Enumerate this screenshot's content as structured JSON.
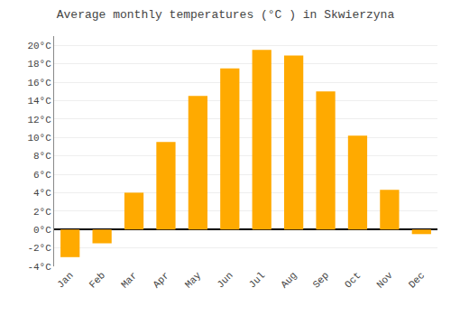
{
  "chart_data": {
    "type": "bar",
    "title": "Average monthly temperatures (°C ) in Skwierzyna",
    "categories": [
      "Jan",
      "Feb",
      "Mar",
      "Apr",
      "May",
      "Jun",
      "Jul",
      "Aug",
      "Sep",
      "Oct",
      "Nov",
      "Dec"
    ],
    "values": [
      -3.0,
      -1.5,
      4.0,
      9.5,
      14.5,
      17.5,
      19.5,
      18.9,
      15.0,
      10.2,
      4.3,
      -0.5
    ],
    "color": "#FFAA00",
    "ylim": [
      -4,
      21
    ],
    "yticks": [
      {
        "value": -4,
        "label": "-4°C"
      },
      {
        "value": -2,
        "label": "-2°C"
      },
      {
        "value": 0,
        "label": "0°C"
      },
      {
        "value": 2,
        "label": "2°C"
      },
      {
        "value": 4,
        "label": "4°C"
      },
      {
        "value": 6,
        "label": "6°C"
      },
      {
        "value": 8,
        "label": "8°C"
      },
      {
        "value": 10,
        "label": "10°C"
      },
      {
        "value": 12,
        "label": "12°C"
      },
      {
        "value": 14,
        "label": "14°C"
      },
      {
        "value": 16,
        "label": "16°C"
      },
      {
        "value": 18,
        "label": "18°C"
      },
      {
        "value": 20,
        "label": "20°C"
      }
    ],
    "grid": true
  }
}
